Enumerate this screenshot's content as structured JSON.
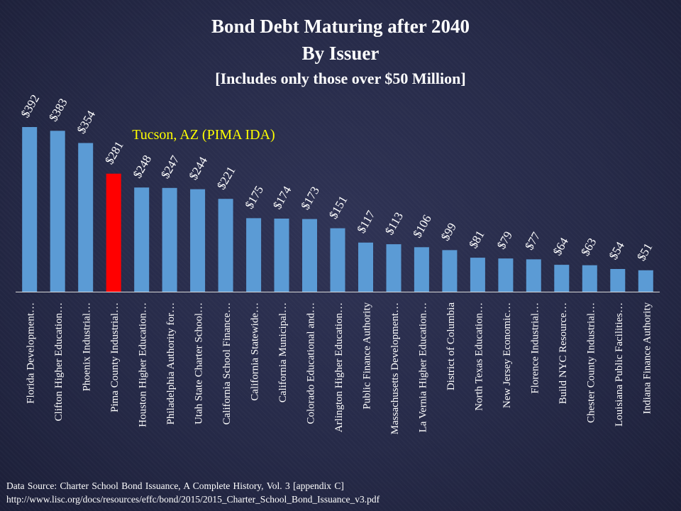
{
  "chart_data": {
    "type": "bar",
    "title": "Bond Debt Maturing after 2040",
    "subtitle": "By Issuer",
    "note": "[Includes only those over $50 Million]",
    "categories": [
      "Florida Development…",
      "Clifton Higher Education…",
      "Phoenix Industrial…",
      "Pima County Industrial…",
      "Houston Higher Education…",
      "Philadelphia Authority for…",
      "Utah State Charter School…",
      "California School Finance…",
      "California Statewide…",
      "California Municipal…",
      "Colorado Educational and…",
      "Arlington Higher Education…",
      "Public Finance Authority",
      "Massachusetts Development…",
      "La Vernia Higher Education…",
      "District of Columbia",
      "North Texas Education…",
      "New Jersey Economic…",
      "Florence Industrial…",
      "Build NYC Resource…",
      "Chester County Industrial…",
      "Louisiana Public Facilities…",
      "Indiana Finance Authority"
    ],
    "values": [
      392,
      383,
      354,
      281,
      248,
      247,
      244,
      221,
      175,
      174,
      173,
      151,
      117,
      113,
      106,
      99,
      81,
      79,
      77,
      64,
      63,
      54,
      51
    ],
    "data_labels": [
      "$392",
      "$383",
      "$354",
      "$281",
      "$248",
      "$247",
      "$244",
      "$221",
      "$175",
      "$174",
      "$173",
      "$151",
      "$117",
      "$113",
      "$106",
      "$99",
      "$81",
      "$79",
      "$77",
      "$64",
      "$63",
      "$54",
      "$51"
    ],
    "highlight_index": 3,
    "annotation": "Tucson, AZ (PIMA IDA)",
    "ylim": [
      0,
      400
    ],
    "xlabel": "",
    "ylabel": "",
    "grid": false,
    "colors": {
      "bar": "#5b9bd5",
      "highlight": "#ff0000",
      "annotation": "#ffff00",
      "text": "#ffffff",
      "axis": "#d9d9d9"
    }
  },
  "footer": {
    "source": "Data Source: Charter School Bond Issuance, A Complete History, Vol. 3 [appendix C]",
    "url": "http://www.lisc.org/docs/resources/effc/bond/2015/2015_Charter_School_Bond_Issuance_v3.pdf"
  }
}
